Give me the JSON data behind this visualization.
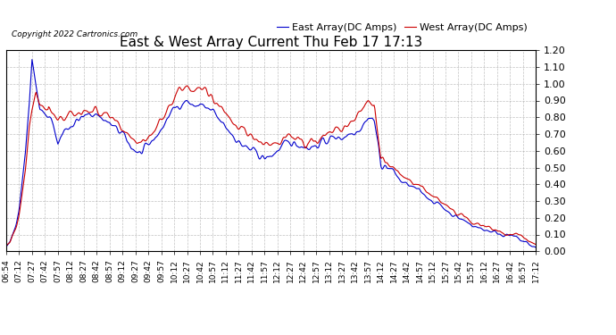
{
  "title": "East & West Array Current Thu Feb 17 17:13",
  "copyright": "Copyright 2022 Cartronics.com",
  "legend_east": "East Array(DC Amps)",
  "legend_west": "West Array(DC Amps)",
  "east_color": "#0000cc",
  "west_color": "#cc0000",
  "ylim": [
    0.0,
    1.2
  ],
  "yticks": [
    0.0,
    0.1,
    0.2,
    0.3,
    0.4,
    0.5,
    0.6,
    0.7,
    0.8,
    0.9,
    1.0,
    1.1,
    1.2
  ],
  "background_color": "#ffffff",
  "grid_color": "#999999",
  "x_labels": [
    "06:54",
    "07:12",
    "07:27",
    "07:42",
    "07:57",
    "08:12",
    "08:27",
    "08:42",
    "08:57",
    "09:12",
    "09:27",
    "09:42",
    "09:57",
    "10:12",
    "10:27",
    "10:42",
    "10:57",
    "11:12",
    "11:27",
    "11:42",
    "11:57",
    "12:12",
    "12:27",
    "12:42",
    "12:57",
    "13:12",
    "13:27",
    "13:42",
    "13:57",
    "14:12",
    "14:27",
    "14:42",
    "14:57",
    "15:12",
    "15:27",
    "15:42",
    "15:57",
    "16:12",
    "16:27",
    "16:42",
    "16:57",
    "17:12"
  ],
  "title_fontsize": 11,
  "label_fontsize": 6.5,
  "legend_fontsize": 8,
  "ytick_fontsize": 8,
  "line_width": 0.8
}
